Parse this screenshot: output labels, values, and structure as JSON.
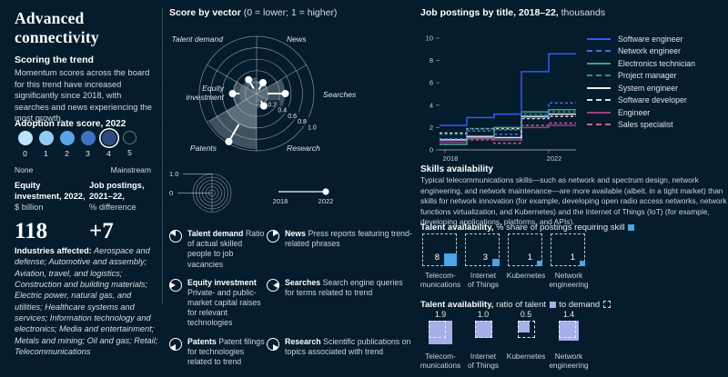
{
  "left": {
    "title": "Advanced connectivity",
    "scoring_heading": "Scoring the trend",
    "scoring_text": "Momentum scores across the board for this trend have increased significantly since 2018, with searches and news experiencing the most growth.",
    "adoption": {
      "label": "Adoption rate score, 2022",
      "scale": [
        {
          "value": "0",
          "color": "#bce4f9"
        },
        {
          "value": "1",
          "color": "#92ccf3"
        },
        {
          "value": "2",
          "color": "#5ba4e8"
        },
        {
          "value": "3",
          "color": "#3d72c2"
        },
        {
          "value": "4",
          "color": "#2b4b82"
        },
        {
          "value": "5",
          "color": "none"
        }
      ],
      "selected_index": 4,
      "min_label": "None",
      "max_label": "Mainstream"
    },
    "stats": [
      {
        "heading": "Equity investment, 2022,",
        "unit": "$ billion",
        "value": "118"
      },
      {
        "heading": "Job postings, 2021–22,",
        "unit": "% difference",
        "value": "+7"
      }
    ],
    "industries_label": "Industries affected:",
    "industries_text": " Aerospace and defense; Automotive and assembly; Aviation, travel, and logistics; Construction and building materials; Electric power, natural gas, and utilities; Healthcare systems and services; Information technology and electronics; Media and entertainment; Metals and mining; Oil and gas; Retail; Telecommunications"
  },
  "vector_panel": {
    "title_bold": "Score by vector",
    "title_rest": " (0 = lower; 1 = higher)",
    "scale_max": "1.0",
    "scale_min": "0",
    "timeline": {
      "start": "2018",
      "end": "2022"
    },
    "legend": [
      {
        "term": "Talent demand",
        "desc": "Ratio of actual skilled people to job vacancies",
        "wedge_from": 300
      },
      {
        "term": "News",
        "desc": "Press reports featuring trend-related phrases",
        "wedge_from": 0
      },
      {
        "term": "Equity investment",
        "desc": "Private- and public-market capital raises for relevant technologies",
        "wedge_from": 240
      },
      {
        "term": "Searches",
        "desc": "Search engine queries for terms related to trend",
        "wedge_from": 60
      },
      {
        "term": "Patents",
        "desc": "Patent filings for technologies related to trend",
        "wedge_from": 180
      },
      {
        "term": "Research",
        "desc": "Scientific publications on topics associated with trend",
        "wedge_from": 120
      }
    ]
  },
  "jobs_panel": {
    "title_bold": "Job postings by title, 2018–22,",
    "title_rest": " thousands"
  },
  "skills": {
    "heading": "Skills availability",
    "text": "Typical telecommunications skills—such as network and spectrum design, network engineering, and network maintenance—are more available (albeit, in a tight market) than skills for network innovation (for example, developing open radio access networks, network functions virtualization, and Kubernetes) and the Internet of Things (IoT) (for example, developing applications, platforms, and APIs)."
  },
  "talent1": {
    "label_bold": "Talent availability,",
    "label_rest": " % share of postings requiring skill"
  },
  "talent2": {
    "label_bold": "Talent availability,",
    "label_mid1": " ratio of talent",
    "label_mid2": " to demand"
  },
  "colors": {
    "background": "#051c2c",
    "accent_blue_square": "#4ba5e6",
    "periwinkle_square": "#a6afe8",
    "radar_fill": "rgba(196,209,220,0.32)"
  },
  "chart_data": [
    {
      "type": "radar",
      "title": "Score by vector (0 = lower; 1 = higher)",
      "rings": [
        0.2,
        0.4,
        0.6,
        0.8,
        1.0
      ],
      "tick_labels": [
        "0.2",
        "0.4",
        "0.6",
        "0.8",
        "1.0"
      ],
      "years": [
        "2018",
        "2022"
      ],
      "sectors": [
        {
          "label": "Talent demand",
          "angle": 330,
          "value_2018": 0.1,
          "value_2022": 0.28
        },
        {
          "label": "News",
          "angle": 30,
          "value_2018": 0.08,
          "value_2022": 0.22
        },
        {
          "label": "Searches",
          "angle": 90,
          "value_2018": 0.19,
          "value_2022": 0.5
        },
        {
          "label": "Research",
          "angle": 150,
          "value_2018": 0.15,
          "value_2022": 0.25
        },
        {
          "label": "Patents",
          "angle": 210,
          "value_2018": 0.62,
          "value_2022": 0.97
        },
        {
          "label": "Equity investment",
          "angle": 270,
          "value_2018": 0.3,
          "value_2022": 0.42
        }
      ]
    },
    {
      "type": "line",
      "title": "Job postings by title, 2018–22, thousands",
      "x": [
        2018,
        2019,
        2020,
        2021,
        2022
      ],
      "xtick_labels": [
        "2018",
        "2022"
      ],
      "ylim": [
        0,
        10
      ],
      "yticks": [
        0,
        2,
        4,
        6,
        8,
        10
      ],
      "legend_position": "right",
      "series": [
        {
          "name": "Software engineer",
          "values": [
            2.2,
            2.9,
            3.2,
            7.0,
            8.6
          ],
          "color": "#2e5bf7",
          "dash": false
        },
        {
          "name": "Network engineer",
          "values": [
            1.0,
            1.7,
            1.4,
            2.9,
            4.2
          ],
          "color": "#4a6cf0",
          "dash": true
        },
        {
          "name": "Electronics technician",
          "values": [
            0.5,
            1.1,
            2.0,
            3.4,
            3.6
          ],
          "color": "#3fa18c",
          "dash": false
        },
        {
          "name": "Project manager",
          "values": [
            1.4,
            1.9,
            1.8,
            3.2,
            3.4
          ],
          "color": "#3d8a7e",
          "dash": true
        },
        {
          "name": "System engineer",
          "values": [
            0.9,
            1.2,
            1.1,
            3.0,
            3.2
          ],
          "color": "#e8edf0",
          "dash": false
        },
        {
          "name": "Software developer",
          "values": [
            1.5,
            1.9,
            1.9,
            2.8,
            3.0
          ],
          "color": "#d8e0e6",
          "dash": true
        },
        {
          "name": "Engineer",
          "values": [
            0.7,
            1.0,
            0.9,
            2.0,
            2.2
          ],
          "color": "#a03e84",
          "dash": false
        },
        {
          "name": "Sales specialist",
          "values": [
            0.5,
            0.9,
            0.6,
            2.2,
            2.4
          ],
          "color": "#c9618f",
          "dash": true
        }
      ]
    },
    {
      "type": "icon-squares",
      "title": "Talent availability, % share of postings requiring skill",
      "categories": [
        "Telecom-\nmunications",
        "Internet\nof Things",
        "Kubernetes",
        "Network\nengineering"
      ],
      "values": [
        8,
        3,
        1,
        1
      ]
    },
    {
      "type": "icon-squares",
      "title": "Talent availability, ratio of talent to demand",
      "categories": [
        "Telecom-\nmunications",
        "Internet\nof Things",
        "Kubernetes",
        "Network\nengineering"
      ],
      "values": [
        1.9,
        1.0,
        0.5,
        1.4
      ]
    }
  ]
}
